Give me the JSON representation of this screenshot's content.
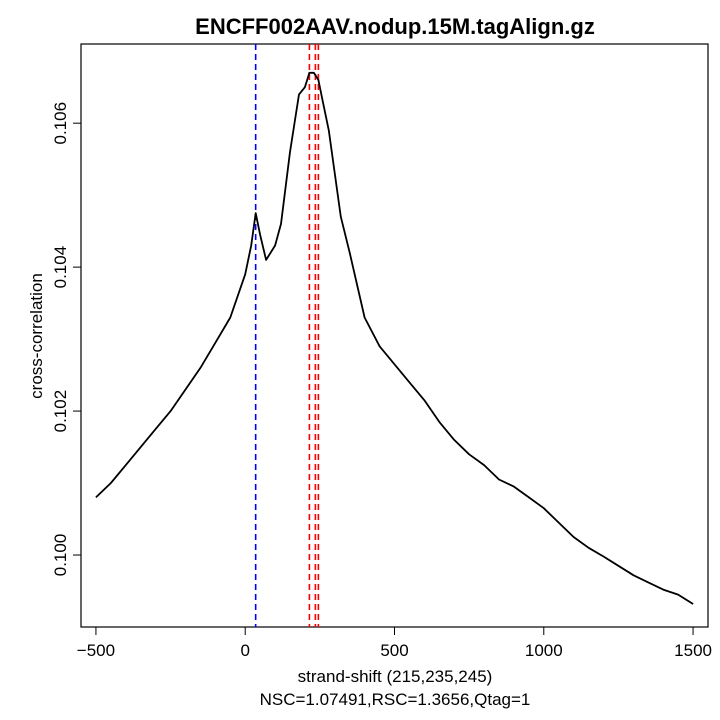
{
  "chart_data": {
    "type": "line",
    "title": "ENCFF002AAV.nodup.15M.tagAlign.gz",
    "xlabel": "strand-shift (215,235,245)",
    "xlabel2": "NSC=1.07491,RSC=1.3656,Qtag=1",
    "ylabel": "cross-correlation",
    "xlim": [
      -550,
      1550
    ],
    "ylim": [
      0.099,
      0.1071
    ],
    "x_ticks": [
      -500,
      0,
      500,
      1000,
      1500
    ],
    "x_tick_labels": [
      "−500",
      "0",
      "500",
      "1000",
      "1500"
    ],
    "y_ticks": [
      0.1,
      0.102,
      0.104,
      0.106
    ],
    "y_tick_labels": [
      "0.100",
      "0.102",
      "0.104",
      "0.106"
    ],
    "grid": false,
    "line_color": "#000000",
    "series": [
      {
        "x": [
          -500,
          -450,
          -400,
          -350,
          -300,
          -250,
          -200,
          -150,
          -100,
          -50,
          0,
          20,
          35,
          50,
          70,
          100,
          120,
          150,
          180,
          200,
          215,
          230,
          245,
          260,
          280,
          300,
          320,
          350,
          400,
          450,
          500,
          550,
          600,
          650,
          700,
          750,
          800,
          850,
          900,
          950,
          1000,
          1050,
          1100,
          1150,
          1200,
          1250,
          1300,
          1350,
          1400,
          1450,
          1500
        ],
        "y": [
          0.1008,
          0.101,
          0.10125,
          0.1015,
          0.10175,
          0.102,
          0.1023,
          0.1026,
          0.10295,
          0.1033,
          0.1039,
          0.1043,
          0.10475,
          0.10445,
          0.1041,
          0.1043,
          0.1046,
          0.1056,
          0.1064,
          0.1065,
          0.1067,
          0.1067,
          0.1066,
          0.1063,
          0.1059,
          0.1053,
          0.1047,
          0.1042,
          0.1033,
          0.1029,
          0.10265,
          0.1024,
          0.10215,
          0.10185,
          0.1016,
          0.1014,
          0.10125,
          0.10105,
          0.10095,
          0.1008,
          0.10065,
          0.10045,
          0.10025,
          0.1001,
          0.09998,
          0.09985,
          0.09972,
          0.09962,
          0.09952,
          0.09945,
          0.09932
        ]
      }
    ],
    "vlines": [
      {
        "x": 35,
        "color": "#0000ff",
        "style": "dashed"
      },
      {
        "x": 215,
        "color": "#ff0000",
        "style": "dashed"
      },
      {
        "x": 235,
        "color": "#ff0000",
        "style": "dashed"
      },
      {
        "x": 245,
        "color": "#ff0000",
        "style": "dashed"
      }
    ]
  }
}
